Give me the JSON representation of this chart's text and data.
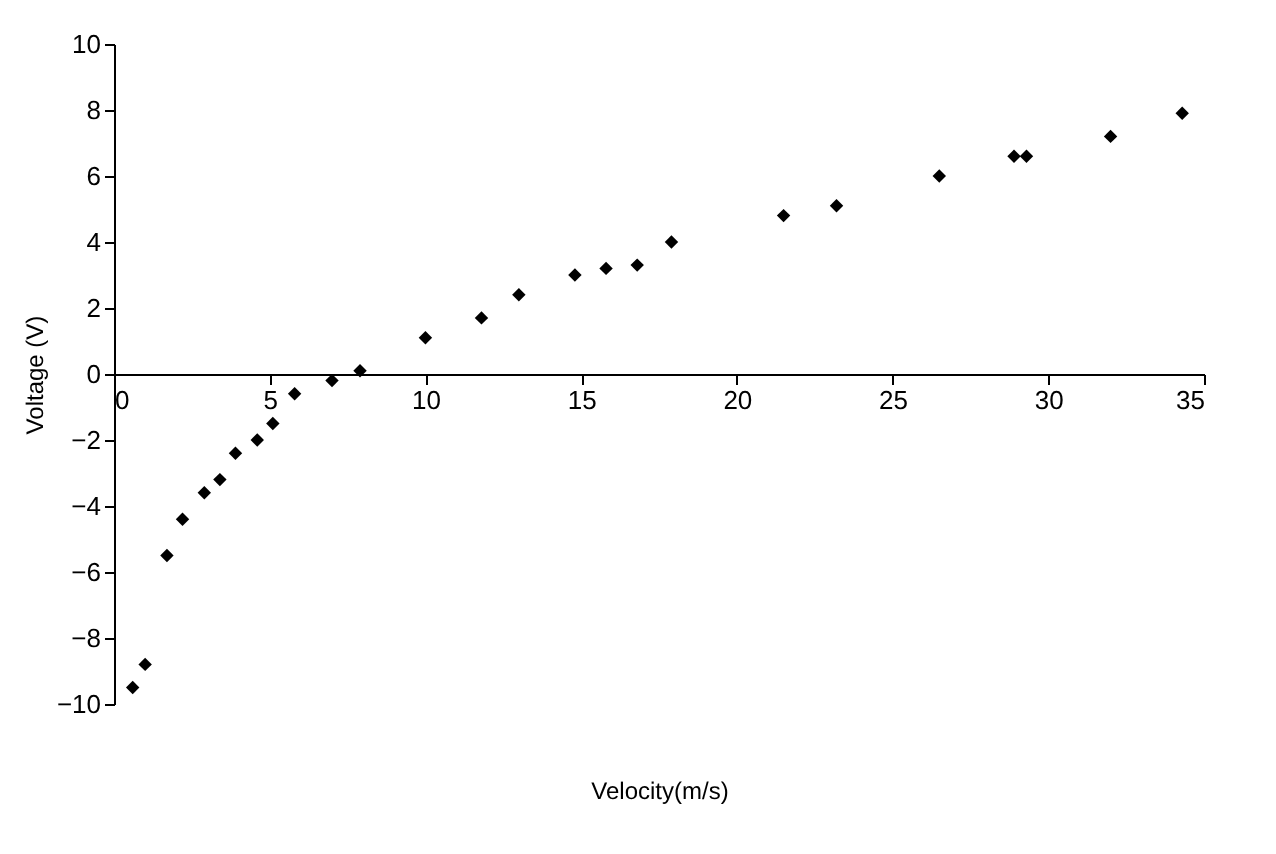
{
  "chart_data": {
    "type": "scatter",
    "xlabel": "Velocity(m/s)",
    "ylabel": "Voltage (V)",
    "x": [
      0.6,
      1.0,
      1.7,
      2.2,
      2.9,
      3.4,
      3.9,
      4.6,
      5.1,
      5.8,
      7.0,
      7.9,
      10.0,
      11.8,
      13.0,
      14.8,
      15.8,
      16.8,
      17.9,
      21.5,
      23.2,
      26.5,
      28.9,
      29.3,
      32.0,
      34.3
    ],
    "series": [
      {
        "color": "#000000",
        "values": [
          -9.5,
          -8.8,
          -5.5,
          -4.4,
          -3.6,
          -3.2,
          -2.4,
          -2.0,
          -1.5,
          -0.6,
          -0.2,
          0.1,
          1.1,
          1.7,
          2.4,
          3.0,
          3.2,
          3.3,
          4.0,
          4.8,
          5.1,
          6.0,
          6.6,
          6.6,
          7.2,
          7.9
        ]
      }
    ],
    "xlim": [
      0,
      35
    ],
    "xticks": [
      0,
      5,
      10,
      15,
      20,
      25,
      30,
      35
    ],
    "ylim": [
      -10,
      10
    ],
    "yticks": [
      -10,
      -8,
      -6,
      -4,
      -2,
      0,
      2,
      4,
      6,
      8,
      10
    ],
    "marker": "diamond",
    "grid": false
  }
}
